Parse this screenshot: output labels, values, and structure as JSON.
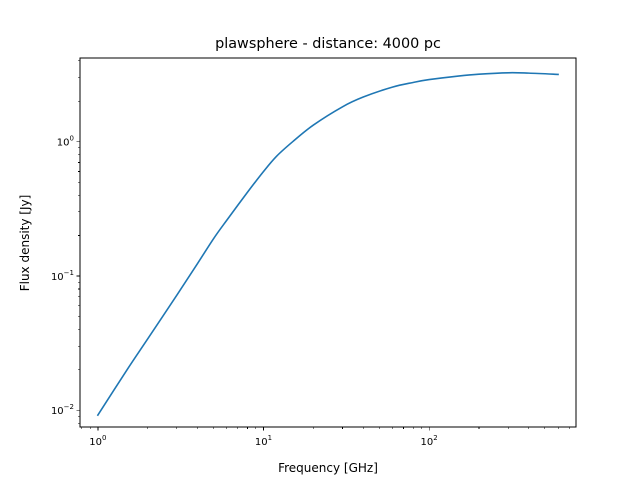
{
  "chart_data": {
    "type": "line",
    "title": "plawsphere - distance: 4000 pc",
    "xlabel": "Frequency [GHz]",
    "ylabel": "Flux density [Jy]",
    "x_scale": "log",
    "y_scale": "log",
    "xlim": [
      0.78,
      770
    ],
    "ylim": [
      0.0075,
      4.2
    ],
    "x_major_ticks": [
      1,
      10,
      100
    ],
    "x_tick_labels": [
      {
        "base": "10",
        "exp": "0"
      },
      {
        "base": "10",
        "exp": "1"
      },
      {
        "base": "10",
        "exp": "2"
      }
    ],
    "y_major_ticks": [
      0.01,
      0.1,
      1
    ],
    "y_tick_labels": [
      {
        "base": "10",
        "exp": "−2"
      },
      {
        "base": "10",
        "exp": "−1"
      },
      {
        "base": "10",
        "exp": "0"
      }
    ],
    "grid": false,
    "series": [
      {
        "color": "#1f77b4",
        "x": [
          1,
          1.5,
          2,
          3,
          4,
          5,
          6,
          8,
          10,
          12,
          15,
          20,
          30,
          40,
          60,
          80,
          100,
          150,
          200,
          300,
          400,
          600
        ],
        "y": [
          0.0092,
          0.02,
          0.034,
          0.072,
          0.124,
          0.19,
          0.26,
          0.42,
          0.6,
          0.78,
          1.0,
          1.33,
          1.82,
          2.15,
          2.55,
          2.76,
          2.9,
          3.08,
          3.18,
          3.26,
          3.24,
          3.17
        ]
      }
    ]
  }
}
